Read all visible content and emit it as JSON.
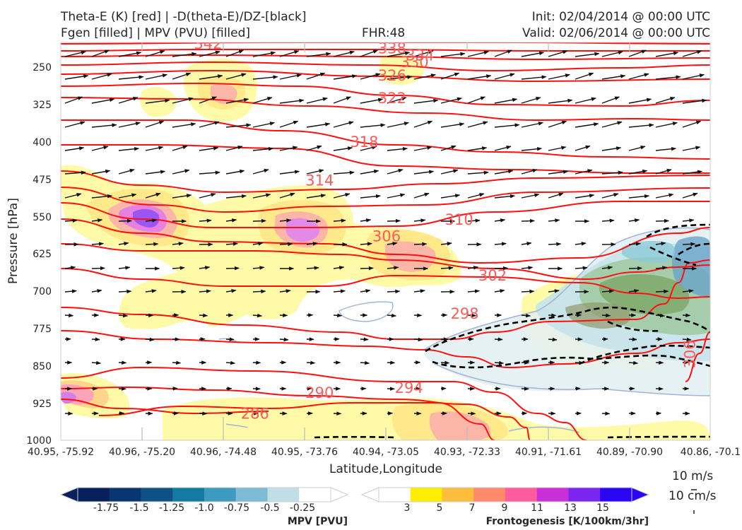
{
  "header": {
    "title_line1": "Theta-E (K) [red] | -D(theta-E)/DZ-[black]",
    "title_line2": "Fgen [filled] | MPV (PVU) [filled]",
    "fhr": "FHR:48",
    "init": "Init: 02/04/2014 @ 00:00 UTC",
    "valid": "Valid: 02/06/2014 @ 00:00 UTC"
  },
  "chart_data": {
    "type": "cross-section",
    "xlabel": "Latitude,Longitude",
    "ylabel": "Pressure [hPa]",
    "y_ticks": [
      "250",
      "325",
      "400",
      "475",
      "550",
      "625",
      "700",
      "775",
      "850",
      "925",
      "1000"
    ],
    "x_ticks": [
      "40.95, -75.92",
      "40.96, -75.20",
      "40.96, -74.48",
      "40.95, -73.76",
      "40.94, -73.05",
      "40.93, -72.33",
      "40.91, -71.61",
      "40.89, -70.90",
      "40.86, -70.1"
    ],
    "ylim": [
      1000,
      200
    ],
    "theta_e_labels": [
      {
        "text": "342",
        "x": -74.6,
        "p": 203
      },
      {
        "text": "338",
        "x": -72.95,
        "p": 212
      },
      {
        "text": "334",
        "x": -72.7,
        "p": 226
      },
      {
        "text": "330",
        "x": -72.75,
        "p": 240
      },
      {
        "text": "326",
        "x": -72.95,
        "p": 267
      },
      {
        "text": "322",
        "x": -72.95,
        "p": 312
      },
      {
        "text": "318",
        "x": -73.2,
        "p": 400
      },
      {
        "text": "314",
        "x": -73.6,
        "p": 478
      },
      {
        "text": "310",
        "x": -72.35,
        "p": 557
      },
      {
        "text": "306",
        "x": -73.0,
        "p": 590
      },
      {
        "text": "302",
        "x": -72.05,
        "p": 669
      },
      {
        "text": "298",
        "x": -72.3,
        "p": 746
      },
      {
        "text": "294",
        "x": -72.8,
        "p": 895
      },
      {
        "text": "290",
        "x": -73.6,
        "p": 905
      },
      {
        "text": "286",
        "x": -74.18,
        "p": 947
      },
      {
        "text": "306",
        "x": -70.28,
        "p": 827
      }
    ],
    "reference_vectors": [
      "10 m/s",
      "10 cm/s"
    ],
    "colorbars": [
      {
        "title": "MPV [PVU]",
        "ticks": [
          "-1.75",
          "-1.5",
          "-1.25",
          "-1.0",
          "-0.75",
          "-0.5",
          "-0.25"
        ],
        "colors": [
          "#08205c",
          "#0a3670",
          "#0d5185",
          "#137aa0",
          "#3e9ac0",
          "#7dbcd4",
          "#c0dee6",
          "#ffffff"
        ]
      },
      {
        "title": "Frontogenesis [K/100km/3hr]",
        "ticks": [
          "3",
          "5",
          "7",
          "9",
          "11",
          "13",
          "15"
        ],
        "colors": [
          "#ffffff",
          "#ffee00",
          "#fdbd3c",
          "#fc8a6b",
          "#ff5c9e",
          "#c92fd6",
          "#7b25f0",
          "#2a06f2"
        ]
      }
    ]
  }
}
